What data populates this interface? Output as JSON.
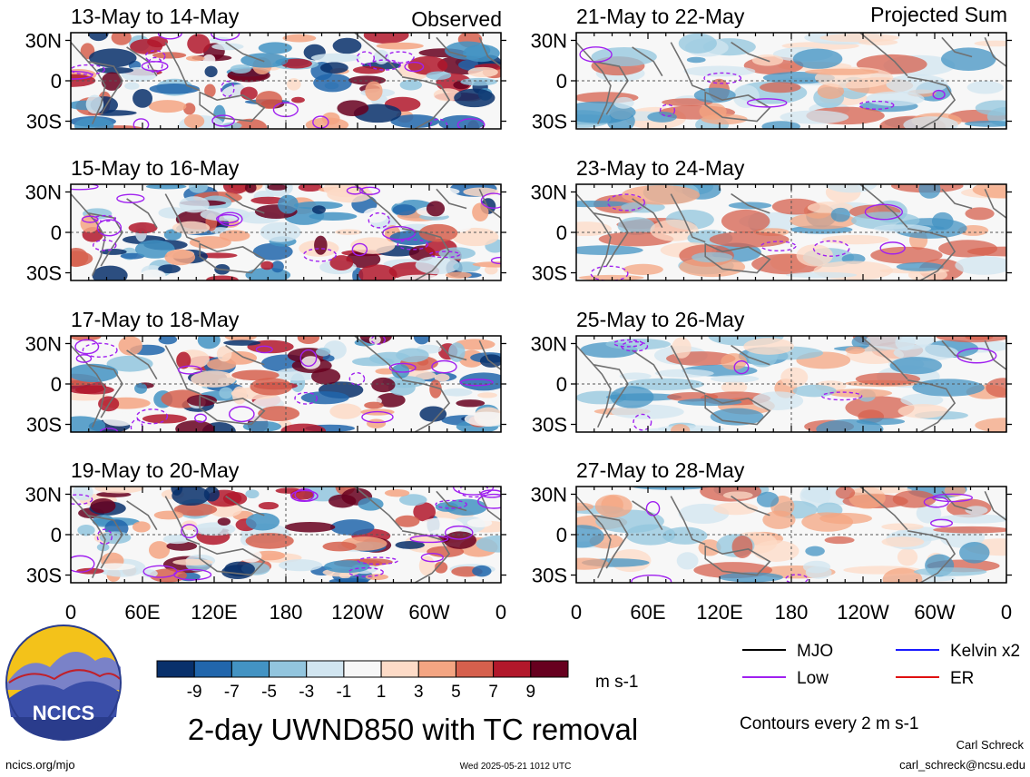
{
  "figure": {
    "title": "2-day UWND850 with TC removal",
    "left_column_header": "Observed",
    "right_column_header": "Projected Sum",
    "contour_note": "Contours every 2 m s-1",
    "timestamp": "Wed 2025-05-21 1012 UTC",
    "website": "ncics.org/mjo",
    "author": "Carl Schreck",
    "email": "carl_schreck@ncsu.edu",
    "logo_text": "NCICS"
  },
  "chart_data": {
    "type": "heatmap",
    "variable": "UWND850",
    "units": "m s-1",
    "lat_ticks": [
      "30N",
      "0",
      "30S"
    ],
    "lon_ticks": [
      "0",
      "60E",
      "120E",
      "180",
      "120W",
      "60W",
      "0"
    ],
    "panels": [
      {
        "label": "13-May to 14-May",
        "type": "Observed"
      },
      {
        "label": "15-May to 16-May",
        "type": "Observed"
      },
      {
        "label": "17-May to 18-May",
        "type": "Observed"
      },
      {
        "label": "19-May to 20-May",
        "type": "Observed"
      },
      {
        "label": "21-May to 22-May",
        "type": "Projected Sum"
      },
      {
        "label": "23-May to 24-May",
        "type": "Projected Sum"
      },
      {
        "label": "25-May to 26-May",
        "type": "Projected Sum"
      },
      {
        "label": "27-May to 28-May",
        "type": "Projected Sum"
      }
    ],
    "colorbar": {
      "labels": [
        "-9",
        "-7",
        "-5",
        "-3",
        "-1",
        "1",
        "3",
        "5",
        "7",
        "9"
      ],
      "colors": [
        "#08306b",
        "#2166ac",
        "#4393c3",
        "#92c5de",
        "#d1e5f0",
        "#f7f7f7",
        "#fddbc7",
        "#f4a582",
        "#d6604d",
        "#b2182b",
        "#67001f"
      ]
    },
    "legend": [
      {
        "name": "MJO",
        "color": "#000000"
      },
      {
        "name": "Kelvin x2",
        "color": "#1a1aff"
      },
      {
        "name": "Low",
        "color": "#a020f0"
      },
      {
        "name": "ER",
        "color": "#e01010"
      }
    ]
  }
}
